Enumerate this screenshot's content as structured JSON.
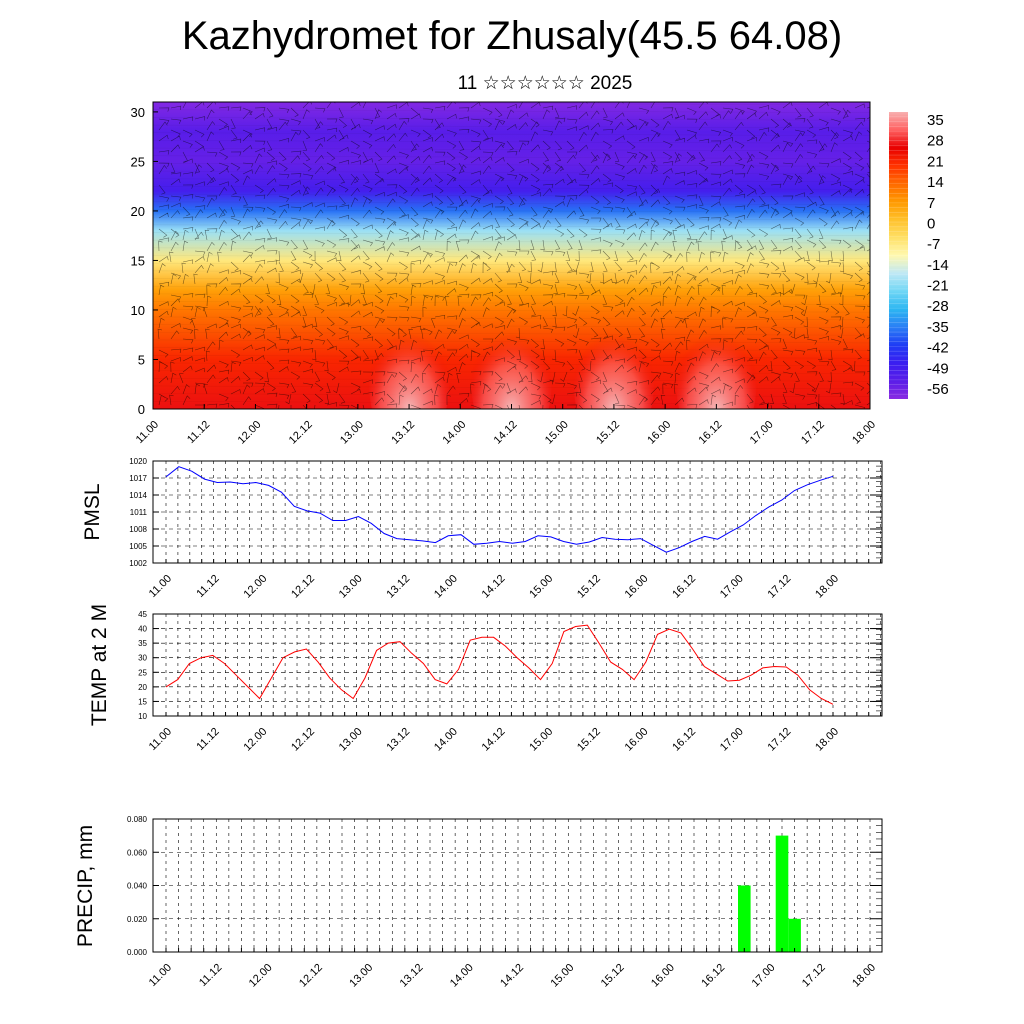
{
  "header": {
    "title": "Kazhydromet for Zhusaly(45.5 64.08)",
    "subtitle": "11 ☆☆☆☆☆☆ 2025"
  },
  "time_ticks": [
    "11.00",
    "11.12",
    "12.00",
    "12.12",
    "13.00",
    "13.12",
    "14.00",
    "14.12",
    "15.00",
    "15.12",
    "16.00",
    "16.12",
    "17.00",
    "17.12",
    "18.00"
  ],
  "colors": {
    "pmsl_line": "#0000ff",
    "temp_line": "#ff0000",
    "precip_bar": "#00ff00",
    "colorbar": [
      "#8a2be2",
      "#5a1de8",
      "#3a1ef0",
      "#1f3cf5",
      "#2a7ef5",
      "#2cb6f2",
      "#6fd6f5",
      "#bfe8f5",
      "#fff8b0",
      "#ffe066",
      "#ffc02a",
      "#ff9900",
      "#ff6a00",
      "#ff3300",
      "#e80000",
      "#ff6060",
      "#f7b0b0"
    ]
  },
  "chart_data": [
    {
      "type": "heatmap",
      "title": "",
      "xlabel": "",
      "ylabel": "",
      "ylim": [
        0,
        31
      ],
      "yticks": [
        0,
        5,
        10,
        15,
        20,
        25,
        30
      ],
      "colorbar": {
        "labels": [
          "35",
          "28",
          "21",
          "14",
          "7",
          "0",
          "-7",
          "-14",
          "-21",
          "-28",
          "-35",
          "-42",
          "-49",
          "-56"
        ],
        "range": [
          -63,
          42
        ]
      },
      "temperature_profile_by_level": {
        "levels": [
          0,
          5,
          10,
          12,
          15,
          18,
          20,
          22,
          25,
          28,
          31
        ],
        "values": [
          30,
          24,
          14,
          8,
          -6,
          -20,
          -38,
          -52,
          -58,
          -56,
          -62
        ]
      },
      "surface_warm_cells_day": [
        13.5,
        14.5,
        15.5,
        16.5
      ],
      "overlay": "wind barbs"
    },
    {
      "type": "line",
      "ylabel": "PMSL",
      "ylim": [
        1002,
        1020
      ],
      "yticks": [
        1002,
        1005,
        1008,
        1011,
        1014,
        1017,
        1020
      ],
      "x_start": "11.00",
      "x_step_hours": 3,
      "series": [
        {
          "values": [
            1017.2,
            1019.0,
            1018.2,
            1016.8,
            1016.2,
            1016.3,
            1016.0,
            1016.2,
            1015.7,
            1014.5,
            1012.0,
            1011.2,
            1010.8,
            1009.5,
            1009.5,
            1010.2,
            1009.0,
            1007.2,
            1006.3,
            1006.1,
            1005.9,
            1005.6,
            1006.8,
            1007.0,
            1005.3,
            1005.5,
            1005.8,
            1005.5,
            1005.8,
            1006.8,
            1006.6,
            1005.8,
            1005.3,
            1005.7,
            1006.5,
            1006.2,
            1006.1,
            1006.3,
            1005.1,
            1003.9,
            1004.7,
            1005.8,
            1006.7,
            1006.2,
            1007.5,
            1008.7,
            1010.4,
            1011.9,
            1013.1,
            1014.8,
            1015.8,
            1016.6,
            1017.3
          ]
        }
      ]
    },
    {
      "type": "line",
      "ylabel": "TEMP at 2 M",
      "ylim": [
        10,
        45
      ],
      "yticks": [
        10,
        15,
        20,
        25,
        30,
        35,
        40,
        45
      ],
      "x_start": "11.00",
      "x_step_hours": 3,
      "series": [
        {
          "values": [
            20,
            22.5,
            28,
            30,
            30.8,
            28,
            24,
            20,
            16,
            23,
            30,
            32,
            33,
            28.5,
            23,
            19,
            16,
            23,
            32.5,
            35,
            35.5,
            31.5,
            28,
            22.5,
            21,
            26,
            36,
            37,
            37,
            34,
            30,
            26.5,
            22.5,
            28,
            39,
            40.7,
            41.2,
            35,
            28.5,
            26,
            22.5,
            28.5,
            38,
            39.8,
            38.5,
            33,
            27,
            24.5,
            22,
            22.3,
            24,
            26.5,
            27,
            26.8,
            24,
            19,
            16,
            14
          ]
        }
      ]
    },
    {
      "type": "bar",
      "ylabel": "PRECIP, mm",
      "ylim": [
        0,
        0.08
      ],
      "yticks": [
        "0.000",
        "0.020",
        "0.040",
        "0.060",
        "0.080"
      ],
      "bars": [
        {
          "time": "16.18",
          "value": 0.04
        },
        {
          "time": "17.03",
          "value": 0.07
        },
        {
          "time": "17.06",
          "value": 0.02
        }
      ]
    }
  ]
}
